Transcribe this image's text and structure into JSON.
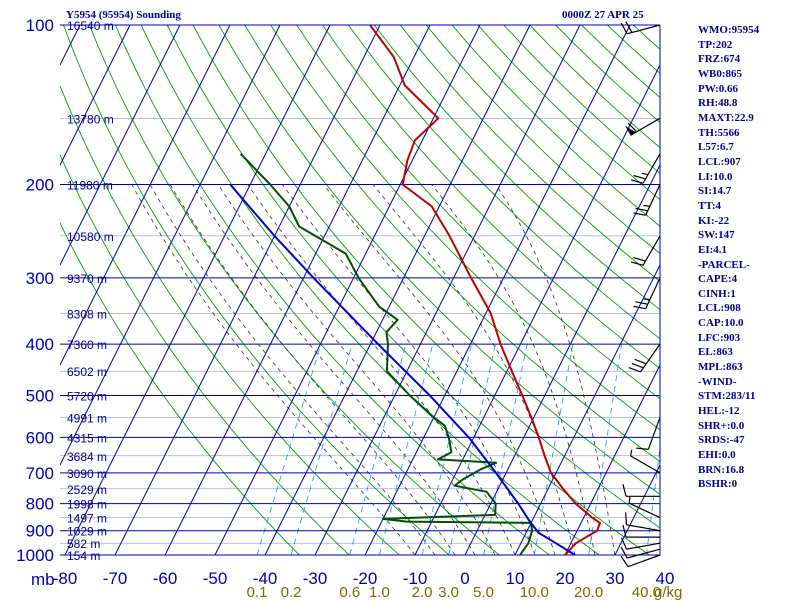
{
  "header": {
    "station_title": "Y5954 (95954) Sounding",
    "valid_time": "0000Z 27 APR 25"
  },
  "indices": [
    "WMO:95954",
    "TP:202",
    "FRZ:674",
    "WB0:865",
    "PW:0.66",
    "RH:48.8",
    "MAXT:22.9",
    "TH:5566",
    "L57:6.7",
    "LCL:907",
    "LI:10.0",
    "SI:14.7",
    "TT:4",
    "KI:-22",
    "SW:147",
    "EI:4.1",
    "-PARCEL-",
    "CAPE:4",
    "CINH:1",
    "LCL:908",
    "CAP:10.0",
    "LFC:903",
    "EL:863",
    "MPL:863",
    "-WIND-",
    "STM:283/11",
    "HEL:-12",
    "SHR+:0.0",
    "SRDS:-47",
    "EHI:0.0",
    "BRN:16.8",
    "BSHR:0"
  ],
  "colors": {
    "isobar": "#0000aa",
    "isotherm": "#0000aa",
    "dry_adiabat": "#00a000",
    "moist_adiabat": "#303030",
    "mixing_ratio": "#3399ff",
    "temperature": "#bb0000",
    "dewpoint": "#005000",
    "parcel": "#0000cc",
    "wind": "#000000",
    "axis_label": "#0000aa",
    "mixing_label": "#7a6a00"
  },
  "chart_data": {
    "type": "skew-t log-p sounding",
    "xlim": [
      -80,
      40
    ],
    "ylim": [
      1000,
      100
    ],
    "y_scale": "log",
    "pressure_ticks": [
      100,
      200,
      300,
      400,
      500,
      600,
      700,
      800,
      900,
      1000
    ],
    "temperature_ticks": [
      -80,
      -70,
      -60,
      -50,
      -40,
      -30,
      -20,
      -10,
      0,
      10,
      20,
      30,
      40
    ],
    "pressure_unit_label": "mb",
    "heights": [
      {
        "p": 100,
        "label": "16540 m"
      },
      {
        "p": 150,
        "label": "13780 m"
      },
      {
        "p": 200,
        "label": "11980 m"
      },
      {
        "p": 250,
        "label": "10580 m"
      },
      {
        "p": 300,
        "label": "9370 m"
      },
      {
        "p": 350,
        "label": "8308 m"
      },
      {
        "p": 400,
        "label": "7360 m"
      },
      {
        "p": 450,
        "label": "6502 m"
      },
      {
        "p": 500,
        "label": "5720 m"
      },
      {
        "p": 550,
        "label": "4991 m"
      },
      {
        "p": 600,
        "label": "4315 m"
      },
      {
        "p": 650,
        "label": "3684 m"
      },
      {
        "p": 700,
        "label": "3090 m"
      },
      {
        "p": 750,
        "label": "2529 m"
      },
      {
        "p": 800,
        "label": "1998 m"
      },
      {
        "p": 850,
        "label": "1497 m"
      },
      {
        "p": 900,
        "label": "1029 m"
      },
      {
        "p": 950,
        "label": "582 m"
      },
      {
        "p": 1000,
        "label": "154 m"
      }
    ],
    "mixing_ratio_labels": [
      "0.1",
      "0.2",
      "0.6",
      "1.0",
      "2.0",
      "3.0",
      "5.0",
      "10.0",
      "20.0",
      "40.0"
    ],
    "mixing_ratio_unit": "g/kg",
    "mixing_ratio_values": [
      0.1,
      0.2,
      0.6,
      1.0,
      2.0,
      3.0,
      5.0,
      10.0,
      20.0,
      40.0
    ],
    "dry_adiabats_K": [
      240,
      250,
      260,
      270,
      280,
      290,
      300,
      310,
      320,
      330,
      340,
      350,
      360,
      370,
      380,
      390,
      400,
      410,
      420,
      430,
      440,
      450,
      460,
      470,
      480,
      490,
      500,
      510,
      520
    ],
    "moist_adiabats_C": [
      -10,
      -6,
      -2,
      2,
      6,
      10,
      14,
      18,
      22,
      26,
      30
    ],
    "series": [
      {
        "name": "temperature",
        "points": [
          {
            "p": 1000,
            "t": 20.0
          },
          {
            "p": 950,
            "t": 21.0
          },
          {
            "p": 900,
            "t": 24.0
          },
          {
            "p": 870,
            "t": 23.8
          },
          {
            "p": 850,
            "t": 21.7
          },
          {
            "p": 800,
            "t": 17.0
          },
          {
            "p": 750,
            "t": 13.0
          },
          {
            "p": 700,
            "t": 9.0
          },
          {
            "p": 650,
            "t": 6.0
          },
          {
            "p": 600,
            "t": 3.0
          },
          {
            "p": 550,
            "t": -0.5
          },
          {
            "p": 500,
            "t": -4.5
          },
          {
            "p": 450,
            "t": -9.0
          },
          {
            "p": 400,
            "t": -14.0
          },
          {
            "p": 350,
            "t": -19.0
          },
          {
            "p": 300,
            "t": -26.5
          },
          {
            "p": 250,
            "t": -35.0
          },
          {
            "p": 220,
            "t": -41.5
          },
          {
            "p": 200,
            "t": -49.5
          },
          {
            "p": 180,
            "t": -51.0
          },
          {
            "p": 165,
            "t": -51.5
          },
          {
            "p": 150,
            "t": -49.0
          },
          {
            "p": 130,
            "t": -59.0
          },
          {
            "p": 115,
            "t": -64.0
          },
          {
            "p": 100,
            "t": -72.0
          }
        ]
      },
      {
        "name": "dewpoint",
        "points": [
          {
            "p": 1000,
            "t": 11.0
          },
          {
            "p": 950,
            "t": 11.5
          },
          {
            "p": 900,
            "t": 11.0
          },
          {
            "p": 870,
            "t": 10.0
          },
          {
            "p": 865,
            "t": -15.0
          },
          {
            "p": 855,
            "t": -20.0
          },
          {
            "p": 840,
            "t": 2.0
          },
          {
            "p": 800,
            "t": 1.0
          },
          {
            "p": 760,
            "t": -2.0
          },
          {
            "p": 740,
            "t": -9.0
          },
          {
            "p": 720,
            "t": -8.0
          },
          {
            "p": 690,
            "t": -5.5
          },
          {
            "p": 670,
            "t": -3.0
          },
          {
            "p": 660,
            "t": -15.0
          },
          {
            "p": 640,
            "t": -13.0
          },
          {
            "p": 600,
            "t": -15.0
          },
          {
            "p": 570,
            "t": -17.0
          },
          {
            "p": 550,
            "t": -20.0
          },
          {
            "p": 500,
            "t": -27.0
          },
          {
            "p": 450,
            "t": -34.0
          },
          {
            "p": 400,
            "t": -36.5
          },
          {
            "p": 380,
            "t": -38.0
          },
          {
            "p": 360,
            "t": -37.0
          },
          {
            "p": 340,
            "t": -42.0
          },
          {
            "p": 300,
            "t": -49.0
          },
          {
            "p": 270,
            "t": -54.0
          },
          {
            "p": 240,
            "t": -66.0
          },
          {
            "p": 220,
            "t": -70.0
          },
          {
            "p": 200,
            "t": -76.0
          },
          {
            "p": 175,
            "t": -85.0
          }
        ]
      },
      {
        "name": "parcel",
        "points": [
          {
            "p": 1000,
            "t": 22.0
          },
          {
            "p": 950,
            "t": 17.0
          },
          {
            "p": 908,
            "t": 12.5
          },
          {
            "p": 863,
            "t": 9.5
          },
          {
            "p": 800,
            "t": 5.5
          },
          {
            "p": 700,
            "t": -2.0
          },
          {
            "p": 600,
            "t": -11.0
          },
          {
            "p": 500,
            "t": -23.0
          },
          {
            "p": 400,
            "t": -38.5
          },
          {
            "p": 300,
            "t": -58.0
          },
          {
            "p": 250,
            "t": -70.0
          },
          {
            "p": 200,
            "t": -84.0
          }
        ]
      }
    ],
    "wind_barbs": [
      {
        "p": 1000,
        "dir": 250,
        "kt": 10
      },
      {
        "p": 975,
        "dir": 255,
        "kt": 10
      },
      {
        "p": 950,
        "dir": 260,
        "kt": 10
      },
      {
        "p": 925,
        "dir": 270,
        "kt": 10
      },
      {
        "p": 900,
        "dir": 280,
        "kt": 10
      },
      {
        "p": 850,
        "dir": 295,
        "kt": 5
      },
      {
        "p": 775,
        "dir": 270,
        "kt": 10
      },
      {
        "p": 700,
        "dir": 300,
        "kt": 5
      },
      {
        "p": 550,
        "dir": 200,
        "kt": 10
      },
      {
        "p": 400,
        "dir": 215,
        "kt": 30
      },
      {
        "p": 300,
        "dir": 205,
        "kt": 25
      },
      {
        "p": 250,
        "dir": 210,
        "kt": 20
      },
      {
        "p": 200,
        "dir": 205,
        "kt": 25
      },
      {
        "p": 175,
        "dir": 210,
        "kt": 25
      },
      {
        "p": 150,
        "dir": 240,
        "kt": 60
      },
      {
        "p": 100,
        "dir": 255,
        "kt": 20
      }
    ]
  }
}
